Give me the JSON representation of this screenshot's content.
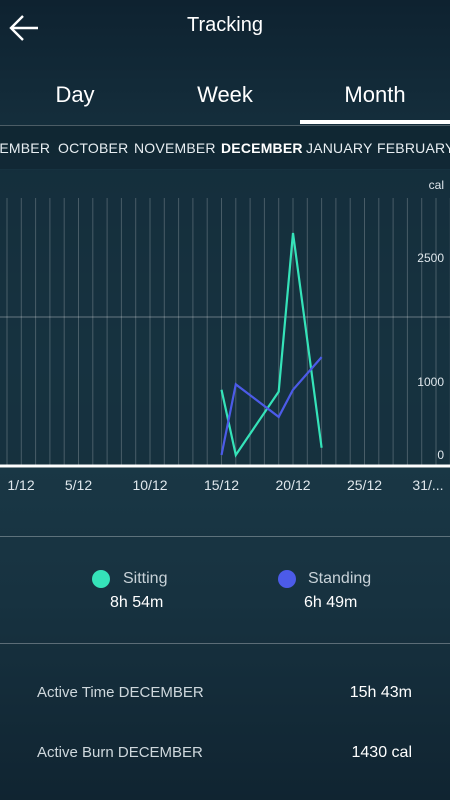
{
  "header": {
    "title": "Tracking",
    "back_icon": "arrow-left-icon"
  },
  "period_tabs": [
    {
      "label": "Day",
      "active": false
    },
    {
      "label": "Week",
      "active": false
    },
    {
      "label": "Month",
      "active": true
    }
  ],
  "months": [
    {
      "label": "SEPTEMBER",
      "selected": false
    },
    {
      "label": "OCTOBER",
      "selected": false
    },
    {
      "label": "NOVEMBER",
      "selected": false
    },
    {
      "label": "DECEMBER",
      "selected": true
    },
    {
      "label": "JANUARY",
      "selected": false
    },
    {
      "label": "FEBRUARY",
      "selected": false
    }
  ],
  "chart_data": {
    "type": "line",
    "y_unit": "cal",
    "y_ticks": [
      "0",
      "1000",
      "2500"
    ],
    "ylim": [
      0,
      3200
    ],
    "xlim": [
      0,
      31
    ],
    "x_tick_labels": [
      {
        "x": 1,
        "label": "1/12"
      },
      {
        "x": 5,
        "label": "5/12"
      },
      {
        "x": 10,
        "label": "10/12"
      },
      {
        "x": 15,
        "label": "15/12"
      },
      {
        "x": 20,
        "label": "20/12"
      },
      {
        "x": 25,
        "label": "25/12"
      },
      {
        "x": 31,
        "label": "31/..."
      }
    ],
    "grid": true,
    "series": [
      {
        "name": "Sitting",
        "color": "#35e3b9",
        "points": [
          [
            15,
            720
          ],
          [
            16,
            0
          ],
          [
            19,
            700
          ],
          [
            20,
            2450
          ],
          [
            22,
            80
          ]
        ]
      },
      {
        "name": "Standing",
        "color": "#4c5be8",
        "points": [
          [
            15,
            0
          ],
          [
            16,
            780
          ],
          [
            19,
            420
          ],
          [
            20,
            720
          ],
          [
            22,
            1080
          ]
        ]
      }
    ]
  },
  "legend": [
    {
      "name": "Sitting",
      "value": "8h 54m",
      "color": "#35e3b9"
    },
    {
      "name": "Standing",
      "value": "6h 49m",
      "color": "#4c5be8"
    }
  ],
  "stats": [
    {
      "label": "Active Time DECEMBER",
      "value": "15h 43m"
    },
    {
      "label": "Active Burn DECEMBER",
      "value": "1430 cal"
    }
  ]
}
